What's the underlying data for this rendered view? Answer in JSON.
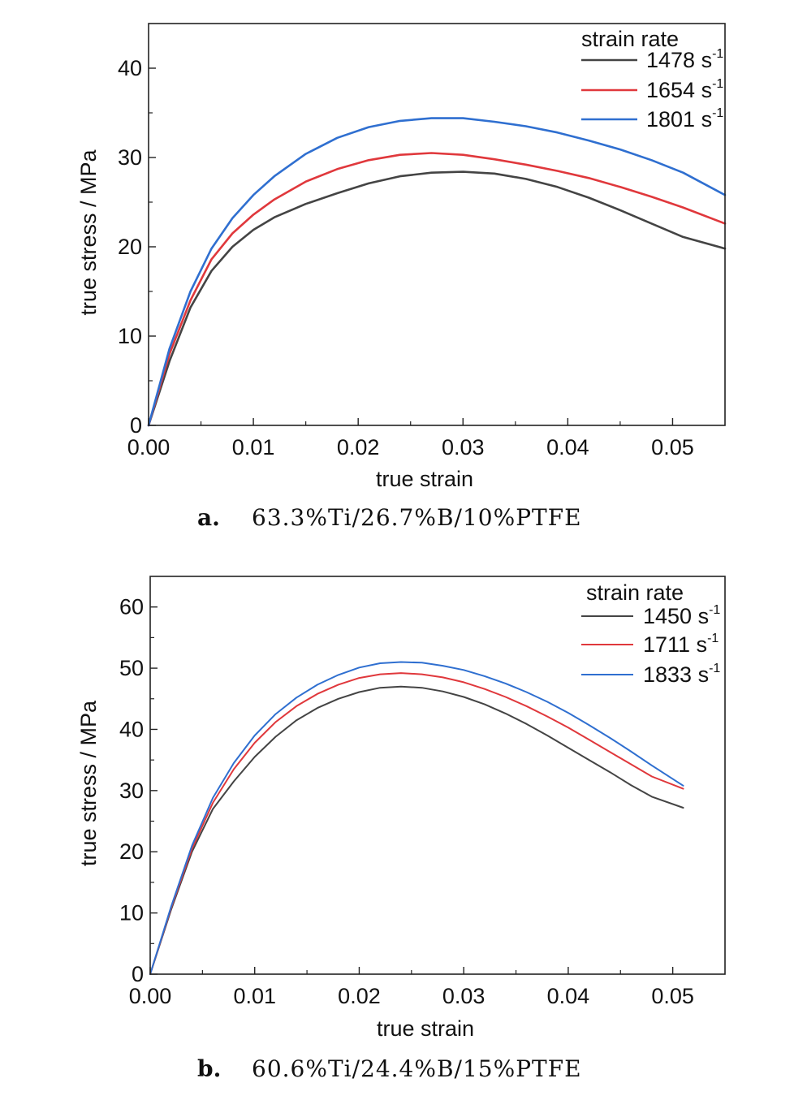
{
  "chart_data": [
    {
      "type": "line",
      "panel_label": "a.",
      "caption": "63.3%Ti/26.7%B/10%PTFE",
      "xlabel": "true strain",
      "ylabel": "true stress / MPa",
      "xlim": [
        0,
        0.055
      ],
      "ylim": [
        0,
        45
      ],
      "xticks": [
        0.0,
        0.01,
        0.02,
        0.03,
        0.04,
        0.05
      ],
      "xtick_labels": [
        "0.00",
        "0.01",
        "0.02",
        "0.03",
        "0.04",
        "0.05"
      ],
      "yticks": [
        0,
        10,
        20,
        30,
        40
      ],
      "ytick_labels": [
        "0",
        "10",
        "20",
        "30",
        "40"
      ],
      "legend_title": "strain rate",
      "legend_position": "top-right",
      "grid": false,
      "series": [
        {
          "name": "1478 s",
          "name_sup": "-1",
          "color": "#444444",
          "x": [
            0,
            0.002,
            0.004,
            0.006,
            0.008,
            0.01,
            0.012,
            0.015,
            0.018,
            0.021,
            0.024,
            0.027,
            0.03,
            0.033,
            0.036,
            0.039,
            0.042,
            0.045,
            0.048,
            0.051,
            0.055
          ],
          "y": [
            0,
            7.2,
            13.2,
            17.3,
            20.0,
            21.9,
            23.3,
            24.8,
            26.0,
            27.1,
            27.9,
            28.3,
            28.4,
            28.2,
            27.6,
            26.7,
            25.5,
            24.1,
            22.6,
            21.1,
            19.8
          ]
        },
        {
          "name": "1654 s",
          "name_sup": "-1",
          "color": "#e0383c",
          "x": [
            0,
            0.002,
            0.004,
            0.006,
            0.008,
            0.01,
            0.012,
            0.015,
            0.018,
            0.021,
            0.024,
            0.027,
            0.03,
            0.033,
            0.036,
            0.039,
            0.042,
            0.045,
            0.048,
            0.051,
            0.055
          ],
          "y": [
            0,
            8.0,
            14.0,
            18.6,
            21.5,
            23.6,
            25.3,
            27.3,
            28.7,
            29.7,
            30.3,
            30.5,
            30.3,
            29.8,
            29.2,
            28.5,
            27.7,
            26.7,
            25.6,
            24.4,
            22.6
          ]
        },
        {
          "name": "1801 s",
          "name_sup": "-1",
          "color": "#2f6fd0",
          "x": [
            0,
            0.002,
            0.004,
            0.006,
            0.008,
            0.01,
            0.012,
            0.015,
            0.018,
            0.021,
            0.024,
            0.027,
            0.03,
            0.033,
            0.036,
            0.039,
            0.042,
            0.045,
            0.048,
            0.051,
            0.055
          ],
          "y": [
            0,
            8.6,
            15.0,
            19.8,
            23.2,
            25.8,
            27.9,
            30.4,
            32.2,
            33.4,
            34.1,
            34.4,
            34.4,
            34.0,
            33.5,
            32.8,
            31.9,
            30.9,
            29.7,
            28.3,
            25.8
          ]
        }
      ]
    },
    {
      "type": "line",
      "panel_label": "b.",
      "caption": "60.6%Ti/24.4%B/15%PTFE",
      "xlabel": "true strain",
      "ylabel": "true stress / MPa",
      "xlim": [
        0,
        0.055
      ],
      "ylim": [
        0,
        65
      ],
      "xticks": [
        0.0,
        0.01,
        0.02,
        0.03,
        0.04,
        0.05
      ],
      "xtick_labels": [
        "0.00",
        "0.01",
        "0.02",
        "0.03",
        "0.04",
        "0.05"
      ],
      "yticks": [
        0,
        10,
        20,
        30,
        40,
        50,
        60
      ],
      "ytick_labels": [
        "0",
        "10",
        "20",
        "30",
        "40",
        "50",
        "60"
      ],
      "legend_title": "strain rate",
      "legend_position": "top-right",
      "grid": false,
      "series": [
        {
          "name": "1450 s",
          "name_sup": "-1",
          "color": "#444444",
          "x": [
            0,
            0.002,
            0.004,
            0.006,
            0.008,
            0.01,
            0.012,
            0.014,
            0.016,
            0.018,
            0.02,
            0.022,
            0.024,
            0.026,
            0.028,
            0.03,
            0.032,
            0.034,
            0.036,
            0.038,
            0.04,
            0.042,
            0.044,
            0.046,
            0.048,
            0.051
          ],
          "y": [
            0,
            10.5,
            20.0,
            27.0,
            31.5,
            35.5,
            38.8,
            41.5,
            43.5,
            45.0,
            46.1,
            46.8,
            47.0,
            46.8,
            46.2,
            45.3,
            44.1,
            42.6,
            40.9,
            39.0,
            37.0,
            35.0,
            33.0,
            30.9,
            29.0,
            27.2
          ]
        },
        {
          "name": "1711 s",
          "name_sup": "-1",
          "color": "#e0383c",
          "x": [
            0,
            0.002,
            0.004,
            0.006,
            0.008,
            0.01,
            0.012,
            0.014,
            0.016,
            0.018,
            0.02,
            0.022,
            0.024,
            0.026,
            0.028,
            0.03,
            0.032,
            0.034,
            0.036,
            0.038,
            0.04,
            0.042,
            0.044,
            0.046,
            0.048,
            0.051
          ],
          "y": [
            0,
            10.8,
            20.5,
            28.0,
            33.5,
            37.8,
            41.2,
            43.8,
            45.8,
            47.3,
            48.4,
            49.0,
            49.2,
            49.0,
            48.5,
            47.7,
            46.6,
            45.3,
            43.8,
            42.1,
            40.3,
            38.3,
            36.3,
            34.3,
            32.3,
            30.3
          ]
        },
        {
          "name": "1833 s",
          "name_sup": "-1",
          "color": "#2f6fd0",
          "x": [
            0,
            0.002,
            0.004,
            0.006,
            0.008,
            0.01,
            0.012,
            0.014,
            0.016,
            0.018,
            0.02,
            0.022,
            0.024,
            0.026,
            0.028,
            0.03,
            0.032,
            0.034,
            0.036,
            0.038,
            0.04,
            0.042,
            0.044,
            0.046,
            0.048,
            0.051
          ],
          "y": [
            0,
            11.0,
            21.0,
            28.8,
            34.5,
            39.0,
            42.5,
            45.2,
            47.3,
            48.9,
            50.1,
            50.8,
            51.0,
            50.9,
            50.4,
            49.7,
            48.7,
            47.5,
            46.1,
            44.5,
            42.7,
            40.7,
            38.6,
            36.4,
            34.1,
            30.8
          ]
        }
      ]
    }
  ]
}
